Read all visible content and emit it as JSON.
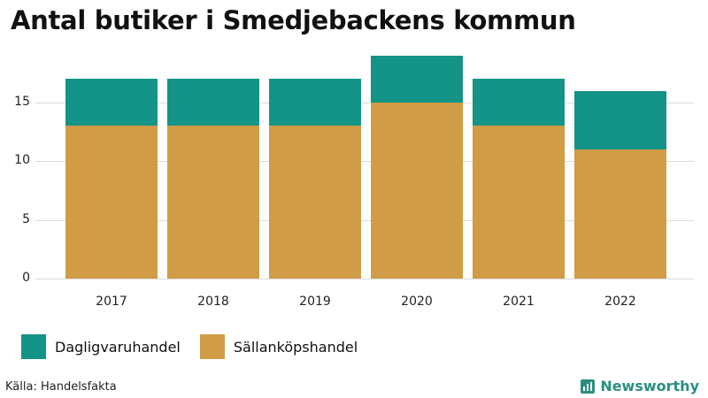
{
  "title": "Antal butiker i Smedjebackens kommun",
  "source": "Källa: Handelsfakta",
  "brand": "Newsworthy",
  "colors": {
    "dagligvaruhandel": "#139487",
    "sallankopshandel": "#D09C45",
    "grid": "#dcdcdc"
  },
  "legend": [
    "Dagligvaruhandel",
    "Sällanköpshandel"
  ],
  "y_ticks": [
    "0",
    "5",
    "10",
    "15"
  ],
  "chart_data": {
    "type": "bar",
    "stacked": true,
    "title": "Antal butiker i Smedjebackens kommun",
    "xlabel": "",
    "ylabel": "",
    "categories": [
      "2017",
      "2018",
      "2019",
      "2020",
      "2021",
      "2022"
    ],
    "series": [
      {
        "name": "Sällanköpshandel",
        "color": "#D09C45",
        "values": [
          13,
          13,
          13,
          15,
          13,
          11
        ]
      },
      {
        "name": "Dagligvaruhandel",
        "color": "#139487",
        "values": [
          4,
          4,
          4,
          4,
          4,
          5
        ]
      }
    ],
    "totals": [
      17,
      17,
      17,
      19,
      17,
      16
    ],
    "ylim": [
      0,
      19
    ],
    "yticks": [
      0,
      5,
      10,
      15
    ],
    "grid": true,
    "legend_position": "bottom-left"
  }
}
